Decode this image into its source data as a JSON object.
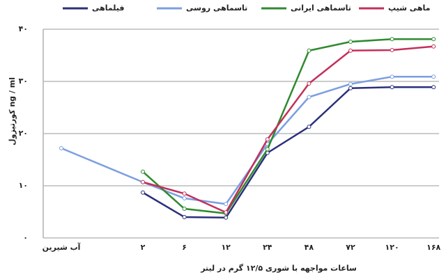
{
  "chart_data": {
    "type": "line",
    "y_label": "کورتیزول ng / ml",
    "x_label": "ساعات مواجهه با شوری ۱۲/۵ گرم در لیتر",
    "categories": [
      "آب شیرین",
      "۲",
      "۶",
      "۱۲",
      "۲۴",
      "۴۸",
      "۷۲",
      "۱۲۰",
      "۱۶۸"
    ],
    "series": [
      {
        "name": "فیلماهی",
        "color": "#2b2f7a",
        "values": [
          null,
          8.7,
          4,
          3.9,
          16.3,
          21.3,
          28.7,
          28.9,
          28.9
        ]
      },
      {
        "name": "تاسماهی روسی",
        "color": "#7b9fe0",
        "values": [
          17.2,
          10.7,
          7.6,
          6.5,
          18,
          27,
          29.5,
          30.9,
          30.9
        ]
      },
      {
        "name": "تاسماهی ایرانی",
        "color": "#2f8a2f",
        "values": [
          null,
          12.7,
          5.6,
          4.7,
          17,
          35.9,
          37.6,
          38.1,
          38.1
        ]
      },
      {
        "name": "ماهی شیپ",
        "color": "#c2305a",
        "values": [
          null,
          10.7,
          8.5,
          4.9,
          18.9,
          29.6,
          35.9,
          36,
          36.7
        ]
      }
    ],
    "ylim": [
      0,
      40
    ],
    "yticks": [
      {
        "value": 0,
        "label": "۰"
      },
      {
        "value": 10,
        "label": "۱۰"
      },
      {
        "value": 20,
        "label": "۲۰"
      },
      {
        "value": 30,
        "label": "۳۰"
      },
      {
        "value": 40,
        "label": "۴۰"
      }
    ],
    "grid": true
  }
}
